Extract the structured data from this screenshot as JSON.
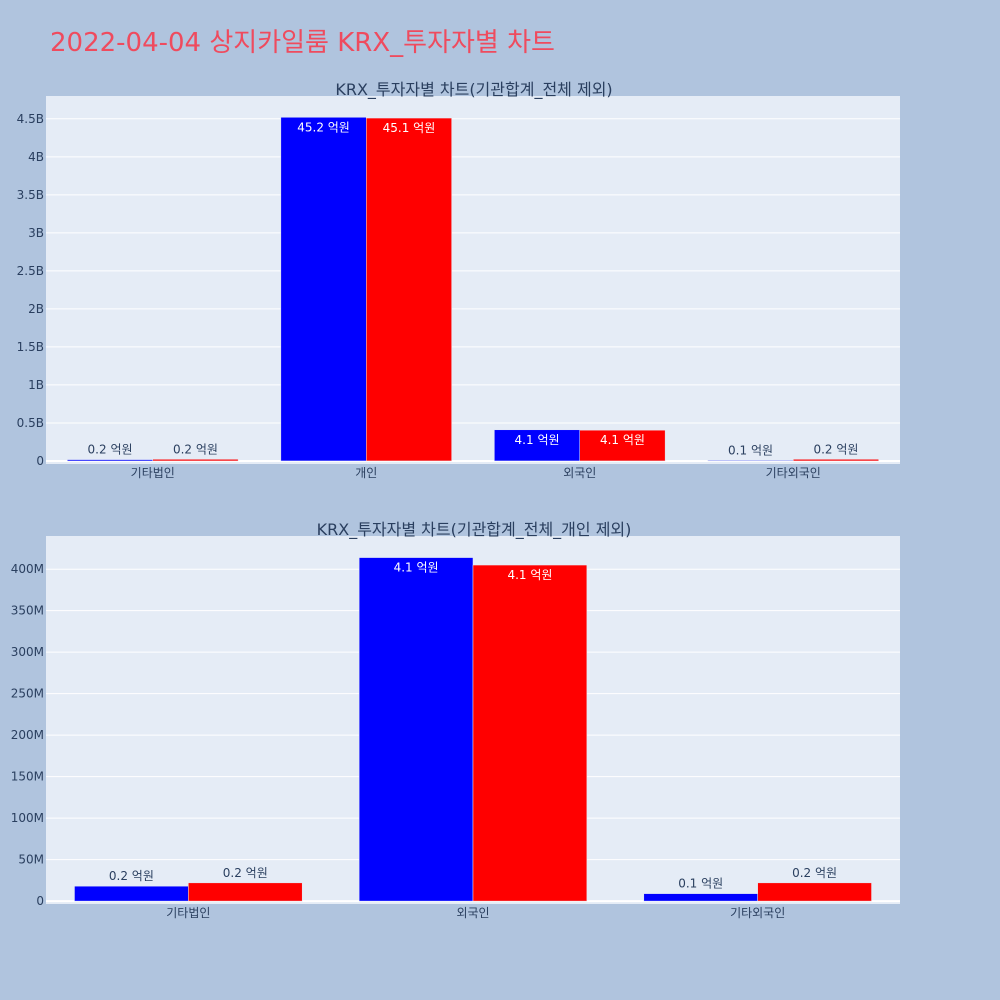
{
  "title": "2022-04-04 상지카일룸 KRX_투자자별 차트",
  "colors": {
    "background": "#b0c4de",
    "plot_background": "#e5ecf6",
    "title": "#ef4b5e",
    "series_a": "#0000ff",
    "series_b": "#ff0000",
    "text": "#2a3f5f"
  },
  "chart_data": [
    {
      "type": "bar",
      "title": "KRX_투자자별 차트(기관합계_전체 제외)",
      "categories": [
        "기타법인",
        "개인",
        "외국인",
        "기타외국인"
      ],
      "series": [
        {
          "values": [
            18000000,
            4520000000,
            410000000,
            9000000
          ],
          "labels": [
            "0.2 억원",
            "45.2 억원",
            "4.1 억원",
            "0.1 억원"
          ]
        },
        {
          "values": [
            22000000,
            4510000000,
            405000000,
            22000000
          ],
          "labels": [
            "0.2 억원",
            "45.1 억원",
            "4.1 억원",
            "0.2 억원"
          ]
        }
      ],
      "yticks": [
        0,
        500000000,
        1000000000,
        1500000000,
        2000000000,
        2500000000,
        3000000000,
        3500000000,
        4000000000,
        4500000000
      ],
      "ytick_labels": [
        "0",
        "0.5B",
        "1B",
        "1.5B",
        "2B",
        "2.5B",
        "3B",
        "3.5B",
        "4B",
        "4.5B"
      ],
      "ylim": [
        -40000000,
        4800000000
      ],
      "grid": true
    },
    {
      "type": "bar",
      "title": "KRX_투자자별 차트(기관합계_전체_개인 제외)",
      "categories": [
        "기타법인",
        "외국인",
        "기타외국인"
      ],
      "series": [
        {
          "values": [
            18000000,
            414000000,
            9000000
          ],
          "labels": [
            "0.2 억원",
            "4.1 억원",
            "0.1 억원"
          ]
        },
        {
          "values": [
            22000000,
            405000000,
            22000000
          ],
          "labels": [
            "0.2 억원",
            "4.1 억원",
            "0.2 억원"
          ]
        }
      ],
      "yticks": [
        0,
        50000000,
        100000000,
        150000000,
        200000000,
        250000000,
        300000000,
        350000000,
        400000000
      ],
      "ytick_labels": [
        "0",
        "50M",
        "100M",
        "150M",
        "200M",
        "250M",
        "300M",
        "350M",
        "400M"
      ],
      "ylim": [
        -3500000,
        440000000
      ],
      "grid": true
    }
  ]
}
